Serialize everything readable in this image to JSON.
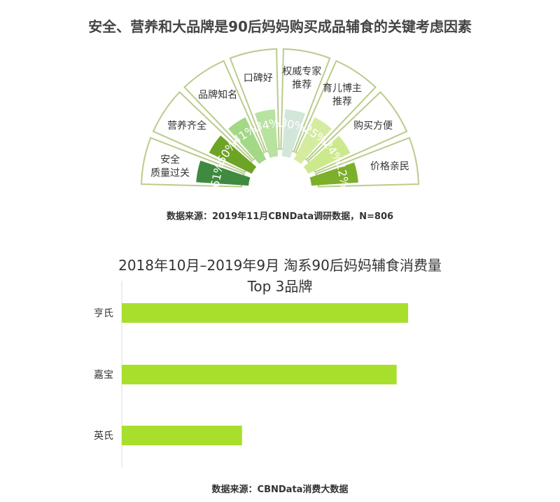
{
  "chart_data": [
    {
      "type": "radial-bar",
      "title": "安全、营养和大品牌是90后妈妈购买成品辅食的关键考虑因素",
      "categories": [
        "安全质量过关",
        "营养齐全",
        "品牌知名",
        "口碑好",
        "权威专家推荐",
        "育儿博主推荐",
        "购买方便",
        "价格亲民"
      ],
      "label_lines": [
        [
          "安全",
          "质量过关"
        ],
        [
          "营养齐全"
        ],
        [
          "品牌知名"
        ],
        [
          "口碑好"
        ],
        [
          "权威专家",
          "推荐"
        ],
        [
          "育儿博主",
          "推荐"
        ],
        [
          "购买方便"
        ],
        [
          "价格亲民"
        ]
      ],
      "values": [
        61,
        50,
        41,
        34,
        30,
        25,
        24,
        12
      ],
      "value_labels": [
        "61%",
        "50%",
        "41%",
        "34%",
        "30%",
        "25%",
        "24%",
        "12%"
      ],
      "colors": [
        "#3f8a3f",
        "#6ea426",
        "#a3d886",
        "#b8e2a0",
        "#d2e6da",
        "#d5eca0",
        "#cce98c",
        "#7caf2a"
      ],
      "source": "数据来源：2019年11月CBNData调研数据，N=806"
    },
    {
      "type": "bar",
      "orientation": "horizontal",
      "title_lines": [
        "2018年10月–2019年9月 淘系90后妈妈辅食消费量",
        "Top 3品牌"
      ],
      "categories": [
        "亨氏",
        "嘉宝",
        "英氏"
      ],
      "values": [
        100,
        96,
        42
      ],
      "value_unit": "relative index (no axis values shown)",
      "color": "#a8df2c",
      "source": "数据来源：CBNData消费大数据"
    }
  ]
}
